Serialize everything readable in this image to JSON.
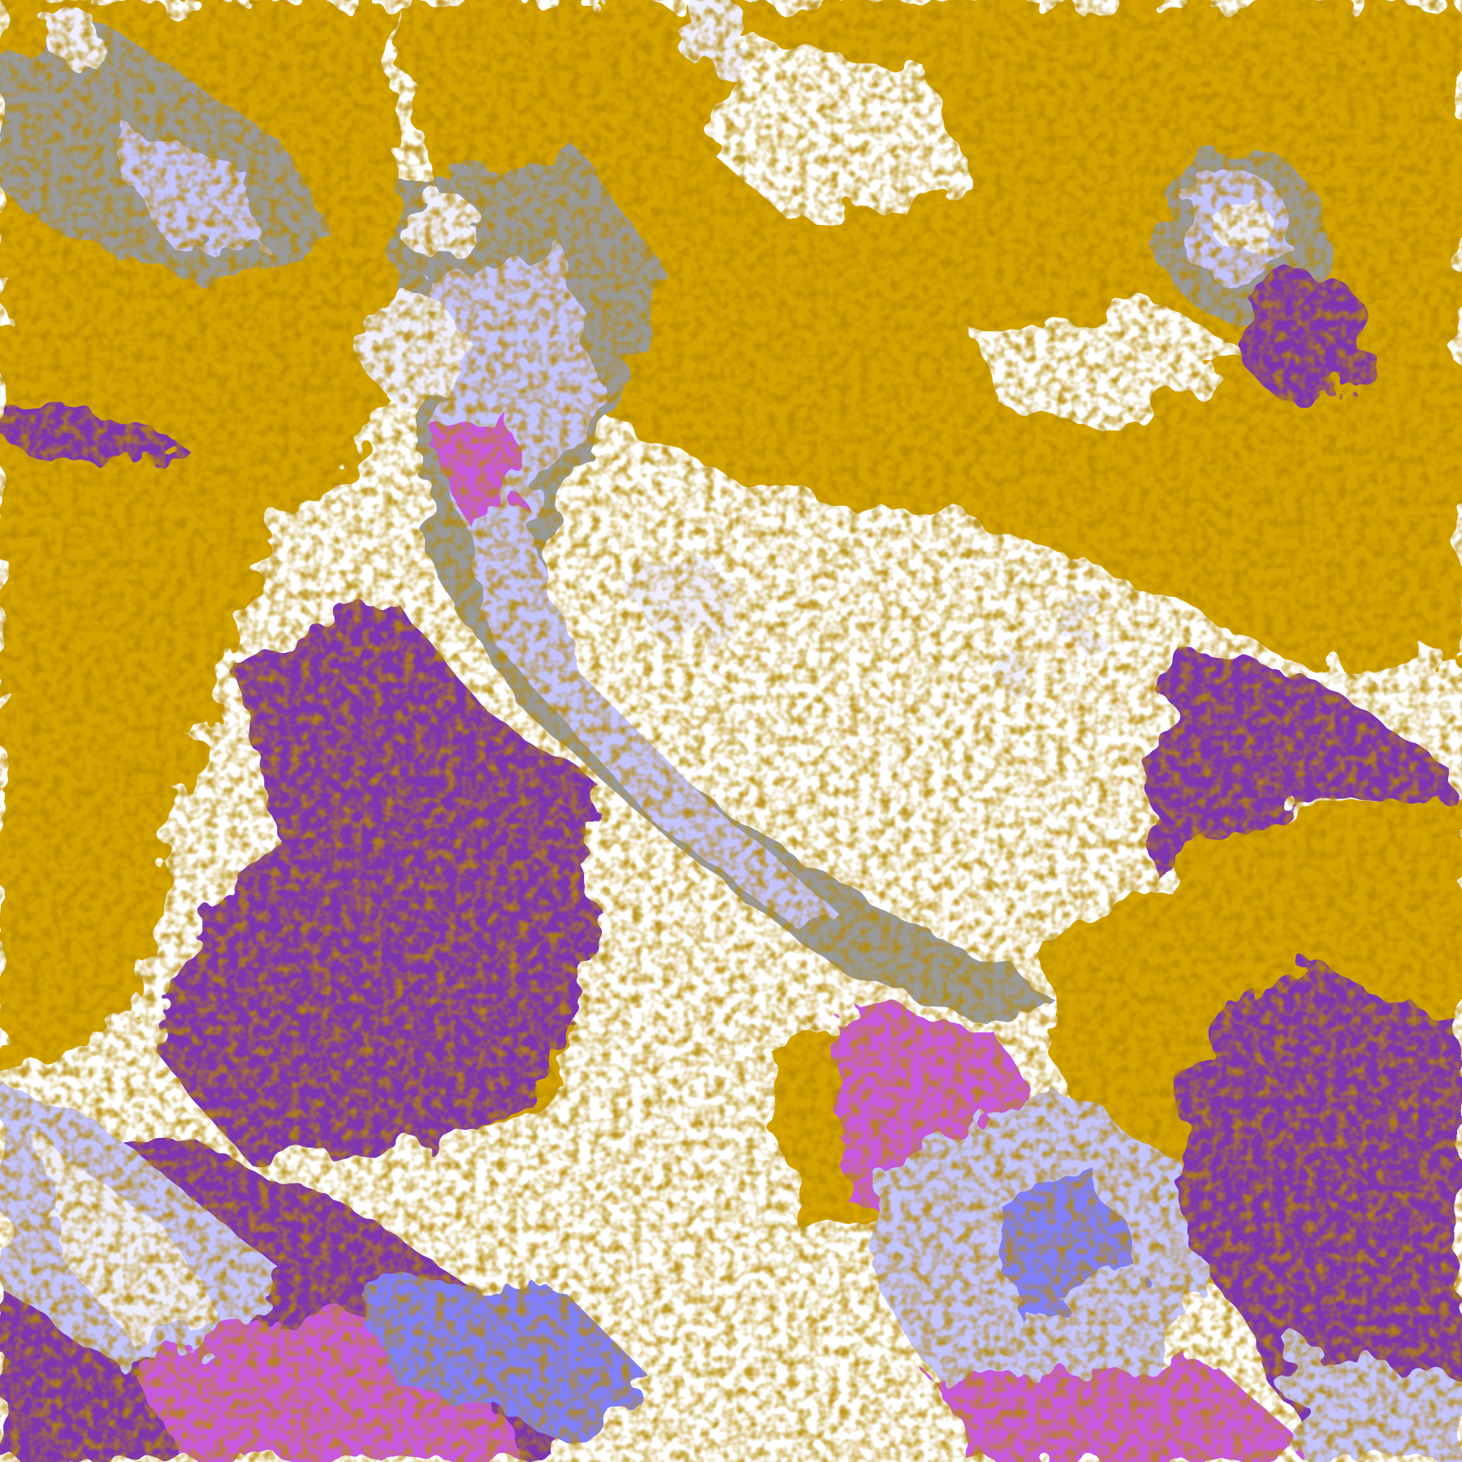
{
  "image": {
    "kind": "false-color satellite cloud classification",
    "palette": {
      "clear": "#ffffff",
      "low_cloud_gold": "#d4a400",
      "dark_gold": "#b88a00",
      "thick_purple": "#7d35b0",
      "magenta": "#c858e0",
      "periwinkle": "#7f7fff",
      "lavender": "#c4c4ff",
      "pale": "#eeeeff",
      "gray": "#9a9a9a"
    }
  }
}
